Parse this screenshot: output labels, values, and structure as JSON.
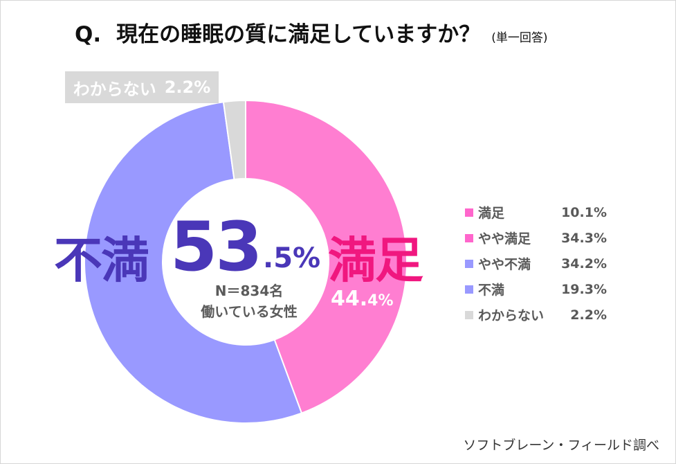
{
  "title": {
    "q": "Q.",
    "main": "現在の睡眠の質に満足していますか？",
    "note": "(単一回答)"
  },
  "chart_data": {
    "type": "pie",
    "slices": [
      {
        "label": "満足",
        "value": 10.1,
        "color": "#ff7ed1"
      },
      {
        "label": "やや満足",
        "value": 34.3,
        "color": "#ff7ed1"
      },
      {
        "label": "やや不満",
        "value": 34.2,
        "color": "#9999ff"
      },
      {
        "label": "不満",
        "value": 19.3,
        "color": "#9999ff"
      },
      {
        "label": "わからない",
        "value": 2.2,
        "color": "#d9d9d9"
      }
    ],
    "ring": [
      {
        "label": "満足",
        "value": 44.4,
        "color": "#ff7ed1"
      },
      {
        "label": "不満",
        "value": 53.5,
        "color": "#9999ff"
      },
      {
        "label": "わからない",
        "value": 2.2,
        "color": "#d9d9d9"
      }
    ],
    "annotations": {
      "fuman_word": "不満",
      "fuman_int": "53",
      "fuman_dec": ".5%",
      "manzoku_word": "満足",
      "manzoku_int": "44.",
      "manzoku_dec": "4%",
      "unknown_label": "わからない",
      "unknown_value": "2.2%",
      "sample": "N＝834名",
      "population": "働いている女性"
    },
    "legend": [
      {
        "label": "満足",
        "value": "10.1%",
        "color": "#ff66cc"
      },
      {
        "label": "やや満足",
        "value": "34.3%",
        "color": "#ff66cc"
      },
      {
        "label": "やや不満",
        "value": "34.2%",
        "color": "#9999ff"
      },
      {
        "label": "不満",
        "value": "19.3%",
        "color": "#9999ff"
      },
      {
        "label": "わからない",
        "value": "2.2%",
        "color": "#d9d9d9"
      }
    ]
  },
  "source": "ソフトブレーン・フィールド調べ"
}
